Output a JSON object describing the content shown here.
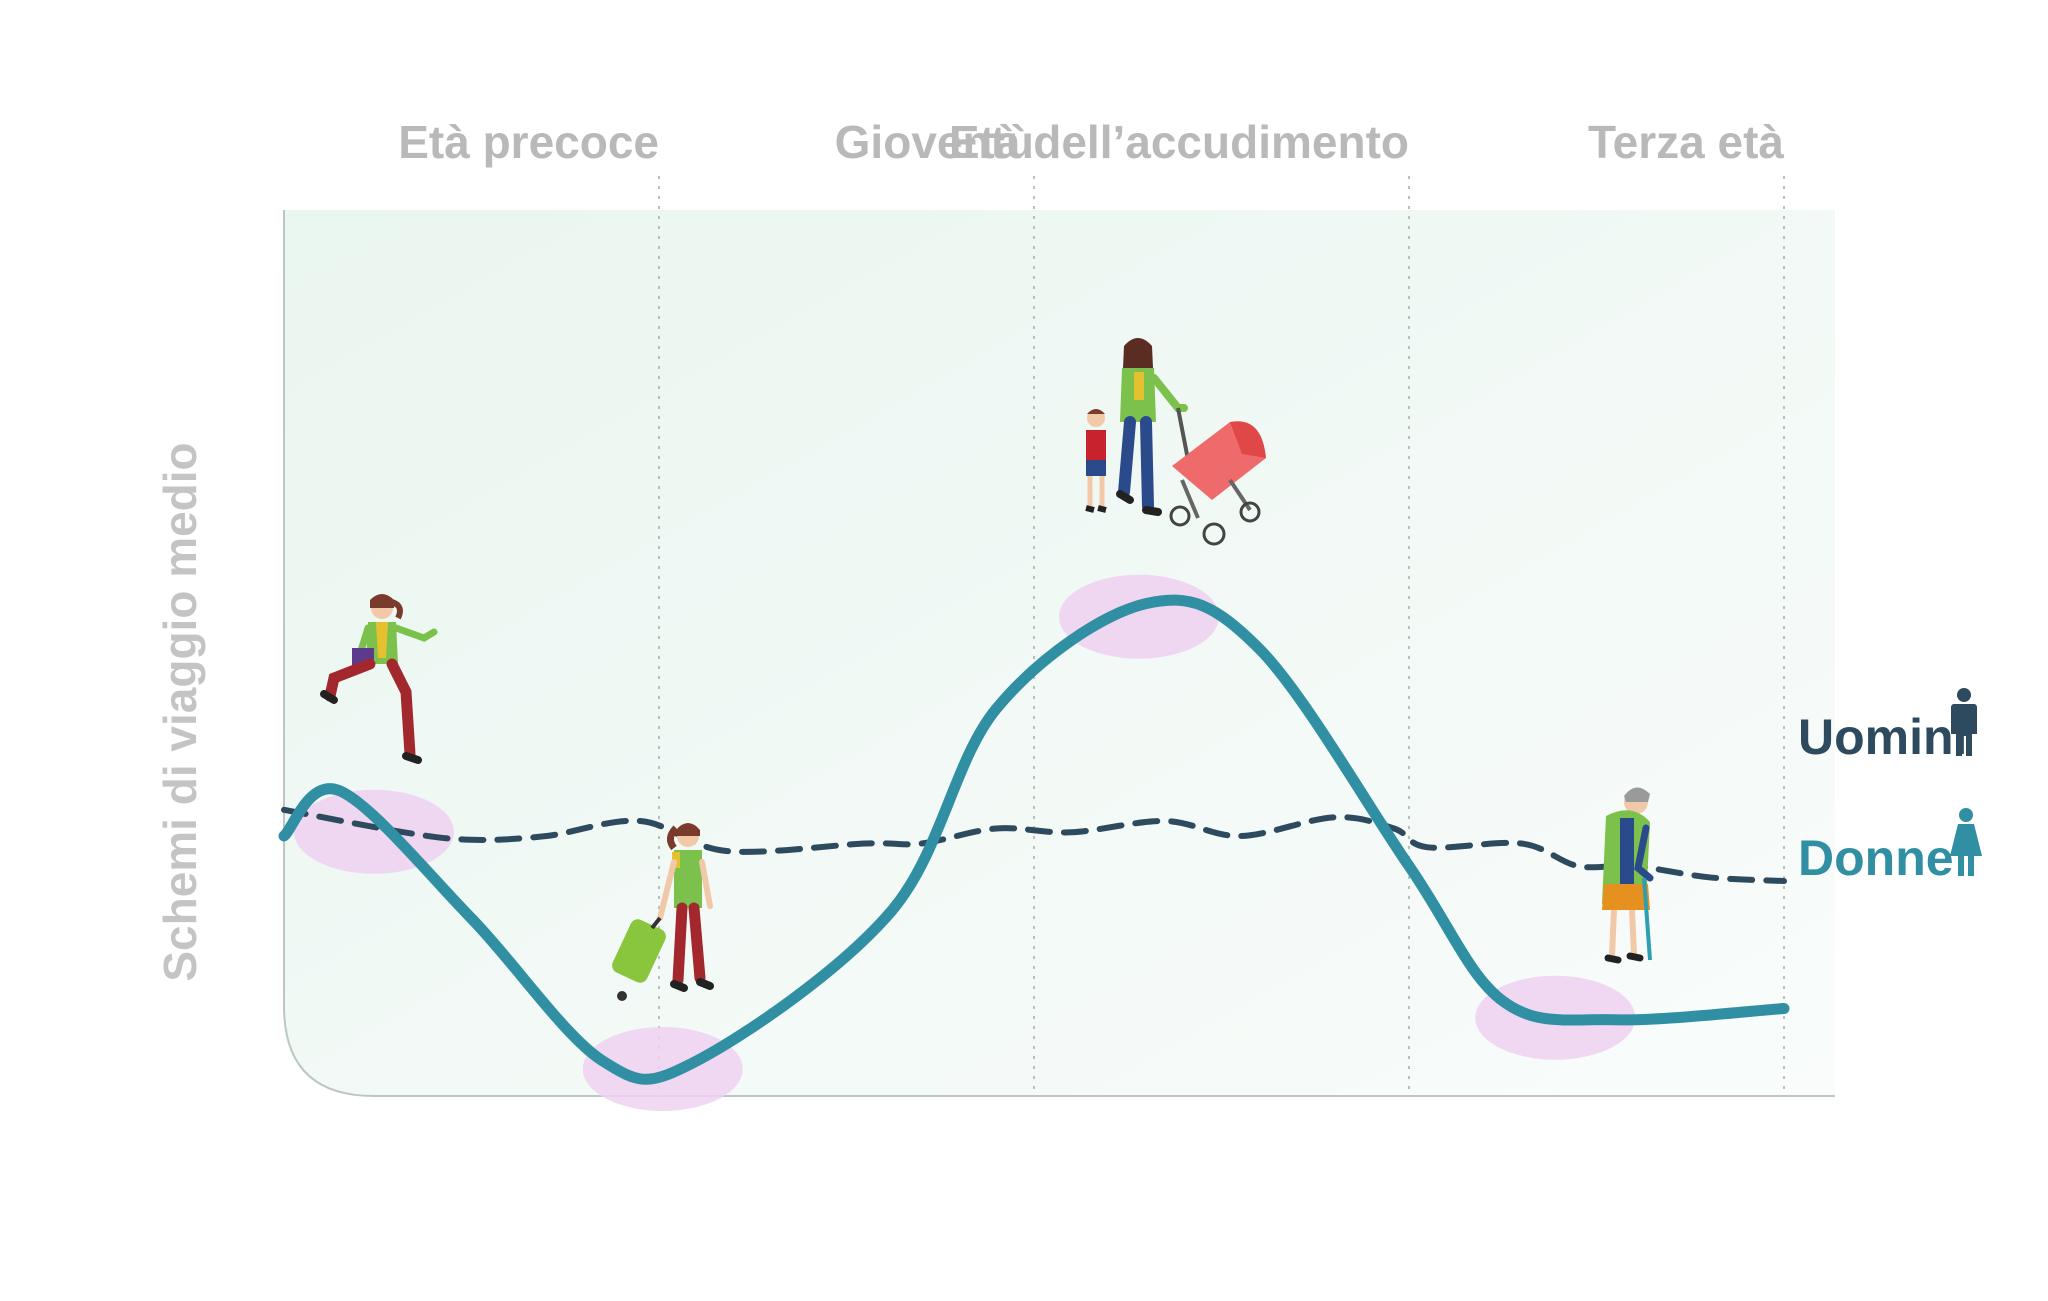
{
  "chart_data": {
    "type": "line",
    "title": "",
    "ylabel": "Schemi di viaggio medio",
    "xlabel": "",
    "categories": [
      "Età precoce",
      "Gioventù",
      "Età dell’accudimento",
      "Terza età"
    ],
    "x_range": [
      0,
      4
    ],
    "y_range": [
      0,
      10
    ],
    "grid": "vertical dotted separators between stages",
    "legend_position": "right",
    "series": [
      {
        "name": "Uomini",
        "color": "#2d4a5e",
        "style": "dashed",
        "icon": "man-icon",
        "points": [
          [
            0.0,
            3.95
          ],
          [
            0.32,
            3.65
          ],
          [
            0.5,
            3.55
          ],
          [
            0.7,
            3.6
          ],
          [
            0.95,
            3.8
          ],
          [
            1.18,
            3.4
          ],
          [
            1.55,
            3.5
          ],
          [
            1.7,
            3.5
          ],
          [
            1.9,
            3.7
          ],
          [
            2.1,
            3.65
          ],
          [
            2.35,
            3.8
          ],
          [
            2.55,
            3.6
          ],
          [
            2.8,
            3.85
          ],
          [
            2.96,
            3.7
          ],
          [
            3.05,
            3.45
          ],
          [
            3.3,
            3.5
          ],
          [
            3.45,
            3.2
          ],
          [
            3.6,
            3.2
          ],
          [
            3.8,
            3.05
          ],
          [
            4.0,
            3.0
          ]
        ]
      },
      {
        "name": "Donne",
        "color": "#318fa3",
        "style": "solid",
        "icon": "woman-icon",
        "points": [
          [
            0.0,
            3.6
          ],
          [
            0.15,
            4.2
          ],
          [
            0.5,
            2.5
          ],
          [
            0.85,
            0.6
          ],
          [
            1.1,
            0.6
          ],
          [
            1.62,
            2.6
          ],
          [
            1.9,
            5.3
          ],
          [
            2.3,
            6.7
          ],
          [
            2.6,
            6.1
          ],
          [
            3.0,
            3.2
          ],
          [
            3.25,
            1.4
          ],
          [
            3.55,
            1.15
          ],
          [
            4.0,
            1.3
          ]
        ]
      }
    ],
    "annotations": [
      {
        "name": "walking-girl-illustration",
        "series": "Donne",
        "x": 0.24
      },
      {
        "name": "traveler-with-suitcase-illustration",
        "series": "Donne",
        "x": 1.01
      },
      {
        "name": "mother-with-stroller-illustration",
        "series": "Donne",
        "x": 2.28
      },
      {
        "name": "elderly-woman-with-cane-illustration",
        "series": "Donne",
        "x": 3.39
      }
    ]
  },
  "colors": {
    "plot_background": "#f1faf6",
    "stage_label": "#b9b9b9",
    "axis_label": "#c4c4c4",
    "highlight_disc": "#eed1f1"
  }
}
